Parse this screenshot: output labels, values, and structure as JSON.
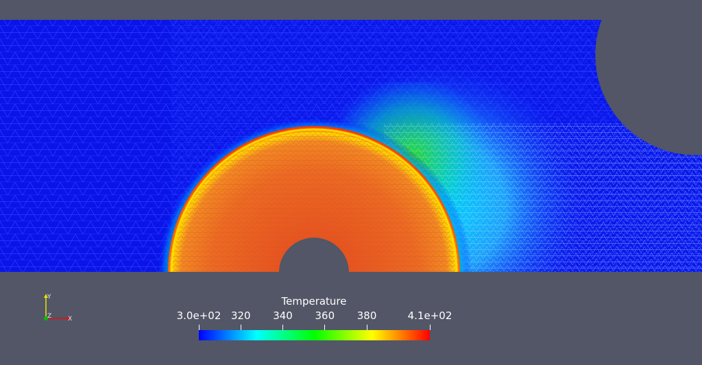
{
  "scene": {
    "background_color": "#525666",
    "field_name": "Temperature"
  },
  "colorbar": {
    "title": "Temperature",
    "range": [
      300,
      410
    ],
    "ticks": [
      {
        "value": 300,
        "label": "3.0e+02"
      },
      {
        "value": 320,
        "label": "320"
      },
      {
        "value": 340,
        "label": "340"
      },
      {
        "value": 360,
        "label": "360"
      },
      {
        "value": 380,
        "label": "380"
      },
      {
        "value": 410,
        "label": "4.1e+02"
      }
    ],
    "colormap": [
      "#0000ff",
      "#0080ff",
      "#00ffff",
      "#00ff80",
      "#00ff00",
      "#80ff00",
      "#ffff00",
      "#ff8000",
      "#ff0000"
    ]
  },
  "axes": {
    "y_label": "Y",
    "z_label": "Z",
    "x_label": "X",
    "colors": {
      "y": "#e6e600",
      "z": "#00c000",
      "x": "#e01010"
    }
  }
}
